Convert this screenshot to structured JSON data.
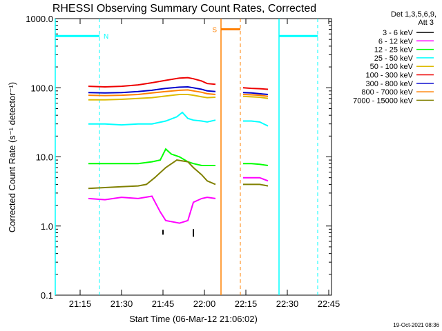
{
  "chart_data": {
    "type": "line",
    "title": "RHESSI Observing Summary Count Rates, Corrected",
    "xlabel": "Start Time (06-Mar-12 21:06:02)",
    "ylabel": "Corrected Count Rate (s⁻¹ detector⁻¹)",
    "y_scale": "log",
    "ylim": [
      0.1,
      1000
    ],
    "xlim_minutes": [
      0,
      100
    ],
    "x_ticks": [
      {
        "t": 9,
        "label": "21:15"
      },
      {
        "t": 24,
        "label": "21:30"
      },
      {
        "t": 39,
        "label": "21:45"
      },
      {
        "t": 54,
        "label": "22:00"
      },
      {
        "t": 69,
        "label": "22:15"
      },
      {
        "t": 84,
        "label": "22:30"
      },
      {
        "t": 99,
        "label": "22:45"
      }
    ],
    "y_ticks": [
      {
        "v": 0.1,
        "label": "0.1"
      },
      {
        "v": 1,
        "label": "1.0"
      },
      {
        "v": 10,
        "label": "10.0"
      },
      {
        "v": 100,
        "label": "100.0"
      },
      {
        "v": 1000,
        "label": "1000.0"
      }
    ],
    "legend_title": [
      "Det 1,3,5,6,9,",
      "Att 3"
    ],
    "series": [
      {
        "name": "3 - 6 keV",
        "color": "#000000",
        "segments": [
          {
            "x": [
              39,
              39
            ],
            "y": [
              0.88,
              0.75
            ]
          },
          {
            "x": [
              50,
              50
            ],
            "y": [
              0.9,
              0.7
            ]
          }
        ]
      },
      {
        "name": "6 - 12 keV",
        "color": "#ff00ff",
        "segments": [
          {
            "x": [
              12,
              18,
              24,
              30,
              35,
              38,
              40,
              45,
              48,
              50,
              53,
              55,
              58
            ],
            "y": [
              2.5,
              2.4,
              2.6,
              2.5,
              2.7,
              1.6,
              1.2,
              1.1,
              1.2,
              2.2,
              2.5,
              2.6,
              2.5
            ]
          },
          {
            "x": [
              68,
              71,
              74,
              77
            ],
            "y": [
              5,
              5,
              5,
              4.5
            ]
          }
        ]
      },
      {
        "name": "12 - 25 keV",
        "color": "#00ff00",
        "segments": [
          {
            "x": [
              12,
              18,
              24,
              30,
              35,
              38,
              40,
              42,
              45,
              48,
              50,
              53,
              55,
              58
            ],
            "y": [
              8,
              8,
              8,
              8,
              8.5,
              9,
              13,
              11,
              10,
              8.5,
              8,
              7.5,
              7.5,
              7.5
            ]
          },
          {
            "x": [
              68,
              71,
              74,
              77
            ],
            "y": [
              8,
              8,
              7.8,
              7.5
            ]
          }
        ]
      },
      {
        "name": "25 - 50 keV",
        "color": "#00ffff",
        "segments": [
          {
            "x": [
              12,
              18,
              24,
              30,
              35,
              40,
              44,
              46,
              48,
              50,
              53,
              55,
              58
            ],
            "y": [
              30,
              30,
              29,
              30,
              30,
              33,
              38,
              44,
              36,
              34,
              33,
              32,
              34
            ]
          },
          {
            "x": [
              68,
              71,
              74,
              77
            ],
            "y": [
              33,
              33,
              32,
              28
            ]
          }
        ]
      },
      {
        "name": "50 - 100 keV",
        "color": "#ddbb00",
        "segments": [
          {
            "x": [
              12,
              18,
              24,
              30,
              35,
              40,
              45,
              48,
              50,
              53,
              55,
              58
            ],
            "y": [
              67,
              67,
              68,
              70,
              72,
              76,
              80,
              80,
              78,
              74,
              72,
              73
            ]
          },
          {
            "x": [
              68,
              71,
              74,
              77
            ],
            "y": [
              75,
              74,
              73,
              70
            ]
          }
        ]
      },
      {
        "name": "100 - 300 keV",
        "color": "#ee0000",
        "segments": [
          {
            "x": [
              12,
              18,
              24,
              30,
              35,
              40,
              45,
              48,
              50,
              53,
              55,
              58
            ],
            "y": [
              105,
              103,
              105,
              110,
              118,
              128,
              138,
              140,
              135,
              125,
              115,
              112
            ]
          },
          {
            "x": [
              68,
              71,
              74,
              77
            ],
            "y": [
              100,
              98,
              97,
              95
            ]
          }
        ]
      },
      {
        "name": "300 - 800 keV",
        "color": "#0000cc",
        "segments": [
          {
            "x": [
              12,
              18,
              24,
              30,
              35,
              40,
              45,
              48,
              50,
              53,
              55,
              58
            ],
            "y": [
              85,
              84,
              85,
              88,
              92,
              98,
              102,
              103,
              100,
              95,
              90,
              88
            ]
          },
          {
            "x": [
              68,
              71,
              74,
              77
            ],
            "y": [
              85,
              84,
              82,
              80
            ]
          }
        ]
      },
      {
        "name": "800 - 7000 keV",
        "color": "#ff8000",
        "segments": [
          {
            "x": [
              12,
              18,
              24,
              30,
              35,
              40,
              45,
              48,
              50,
              53,
              55,
              58
            ],
            "y": [
              78,
              77,
              78,
              80,
              84,
              88,
              92,
              93,
              90,
              86,
              82,
              80
            ]
          },
          {
            "x": [
              68,
              71,
              74,
              77
            ],
            "y": [
              80,
              79,
              78,
              75
            ]
          }
        ]
      },
      {
        "name": "7000 - 15000 keV",
        "color": "#808000",
        "segments": [
          {
            "x": [
              12,
              18,
              24,
              30,
              33,
              36,
              40,
              44,
              48,
              50,
              53,
              55,
              58
            ],
            "y": [
              3.5,
              3.6,
              3.7,
              3.8,
              4,
              5,
              7,
              9,
              8.5,
              7,
              5.5,
              4.5,
              4
            ]
          },
          {
            "x": [
              68,
              71,
              74,
              77
            ],
            "y": [
              4,
              4,
              4,
              3.8
            ]
          }
        ]
      }
    ],
    "annotations": [
      {
        "label": "N",
        "color": "#00ffff",
        "x": [
          0,
          16
        ],
        "y": 560,
        "verticals_solid": [
          0
        ],
        "verticals_dashed": [
          16
        ]
      },
      {
        "label": "S",
        "color": "#ff8000",
        "x": [
          60,
          67
        ],
        "y": 700,
        "verticals_solid": [
          60
        ],
        "verticals_dashed": [
          67
        ]
      },
      {
        "label": "",
        "color": "#00ffff",
        "x": [
          81,
          95
        ],
        "y": 560,
        "verticals_solid": [
          81
        ],
        "verticals_dashed": [
          95
        ]
      }
    ],
    "footer_date": "19-Oct-2021 08:36"
  }
}
